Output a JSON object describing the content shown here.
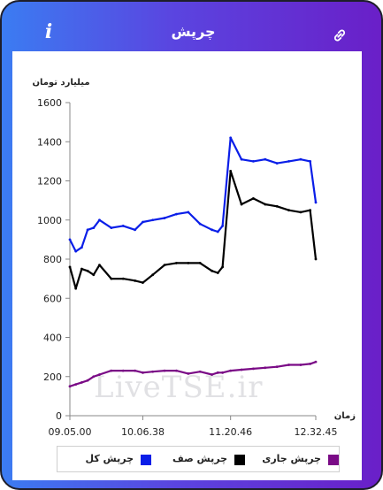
{
  "app": {
    "title": "چرپش",
    "info_icon": "i",
    "link_icon": "link-icon"
  },
  "colors": {
    "header_gradient_start": "#3b7cf2",
    "header_gradient_end": "#6a1fc8",
    "total": "#0a1ee8",
    "queue": "#000000",
    "current": "#7a0a86"
  },
  "watermark": "LiveTSE.ir",
  "chart_data": {
    "type": "line",
    "ylabel": "میلیارد تومان",
    "xlabel": "زمان",
    "ylim": [
      0,
      1600
    ],
    "yticks": [
      0,
      200,
      400,
      600,
      800,
      1000,
      1200,
      1400,
      1600
    ],
    "x_tick_labels": [
      "09.05.00",
      "10.06.38",
      "11.20.46",
      "12.32.45"
    ],
    "x_range": [
      "09.05.00",
      "12.32.45"
    ],
    "grid": false,
    "legend_position": "bottom",
    "series": [
      {
        "name": "چرپش کل",
        "color": "#0a1ee8",
        "x": [
          "09.05.00",
          "09.10.00",
          "09.15.00",
          "09.20.00",
          "09.25.00",
          "09.30.00",
          "09.40.00",
          "09.50.00",
          "10.00.00",
          "10.06.38",
          "10.15.00",
          "10.25.00",
          "10.35.00",
          "10.45.00",
          "10.55.00",
          "11.05.00",
          "11.10.00",
          "11.14.00",
          "11.20.46",
          "11.30.00",
          "11.40.00",
          "11.50.00",
          "12.00.00",
          "12.10.00",
          "12.20.00",
          "12.28.00",
          "12.32.45"
        ],
        "values": [
          900,
          840,
          860,
          950,
          960,
          1000,
          960,
          970,
          950,
          990,
          1000,
          1010,
          1030,
          1040,
          980,
          950,
          940,
          970,
          1420,
          1310,
          1300,
          1310,
          1290,
          1300,
          1310,
          1300,
          1090
        ]
      },
      {
        "name": "چرپش صف",
        "color": "#000000",
        "x": [
          "09.05.00",
          "09.10.00",
          "09.15.00",
          "09.20.00",
          "09.25.00",
          "09.30.00",
          "09.40.00",
          "09.50.00",
          "10.00.00",
          "10.06.38",
          "10.15.00",
          "10.25.00",
          "10.35.00",
          "10.45.00",
          "10.55.00",
          "11.05.00",
          "11.10.00",
          "11.14.00",
          "11.20.46",
          "11.30.00",
          "11.40.00",
          "11.50.00",
          "12.00.00",
          "12.10.00",
          "12.20.00",
          "12.28.00",
          "12.32.45"
        ],
        "values": [
          760,
          650,
          750,
          740,
          720,
          770,
          700,
          700,
          690,
          680,
          720,
          770,
          780,
          780,
          780,
          740,
          730,
          760,
          1250,
          1080,
          1110,
          1080,
          1070,
          1050,
          1040,
          1050,
          800
        ]
      },
      {
        "name": "چرپش جاری",
        "color": "#7a0a86",
        "x": [
          "09.05.00",
          "09.10.00",
          "09.15.00",
          "09.20.00",
          "09.25.00",
          "09.30.00",
          "09.40.00",
          "09.50.00",
          "10.00.00",
          "10.06.38",
          "10.15.00",
          "10.25.00",
          "10.35.00",
          "10.45.00",
          "10.55.00",
          "11.05.00",
          "11.10.00",
          "11.14.00",
          "11.20.46",
          "11.30.00",
          "11.40.00",
          "11.50.00",
          "12.00.00",
          "12.10.00",
          "12.20.00",
          "12.28.00",
          "12.32.45"
        ],
        "values": [
          150,
          160,
          170,
          180,
          200,
          210,
          230,
          230,
          230,
          220,
          225,
          230,
          230,
          215,
          225,
          210,
          220,
          220,
          230,
          235,
          240,
          245,
          250,
          260,
          260,
          265,
          275
        ]
      }
    ]
  }
}
